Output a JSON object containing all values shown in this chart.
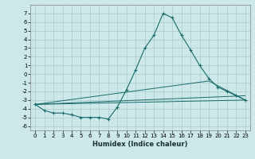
{
  "xlabel": "Humidex (Indice chaleur)",
  "xlim": [
    -0.5,
    23.5
  ],
  "ylim": [
    -6.5,
    8.0
  ],
  "yticks": [
    -6,
    -5,
    -4,
    -3,
    -2,
    -1,
    0,
    1,
    2,
    3,
    4,
    5,
    6,
    7
  ],
  "xticks": [
    0,
    1,
    2,
    3,
    4,
    5,
    6,
    7,
    8,
    9,
    10,
    11,
    12,
    13,
    14,
    15,
    16,
    17,
    18,
    19,
    20,
    21,
    22,
    23
  ],
  "bg_color": "#cce8e8",
  "grid_color": "#aacccc",
  "line_color": "#1a6b6b",
  "main_line": {
    "x": [
      0,
      1,
      2,
      3,
      4,
      5,
      6,
      7,
      8,
      9,
      10,
      11,
      12,
      13,
      14,
      15,
      16,
      17,
      18,
      19,
      20,
      21,
      22,
      23
    ],
    "y": [
      -3.5,
      -4.2,
      -4.5,
      -4.5,
      -4.7,
      -5.0,
      -5.0,
      -5.0,
      -5.2,
      -3.8,
      -1.8,
      0.5,
      3.0,
      4.5,
      7.0,
      6.5,
      4.5,
      2.8,
      1.0,
      -0.5,
      -1.5,
      -2.0,
      -2.5,
      -3.0
    ]
  },
  "extra_lines": [
    {
      "x": [
        0,
        23
      ],
      "y": [
        -3.5,
        -3.0
      ]
    },
    {
      "x": [
        0,
        23
      ],
      "y": [
        -3.5,
        -2.5
      ]
    },
    {
      "x": [
        0,
        19,
        23
      ],
      "y": [
        -3.5,
        -0.8,
        -3.0
      ]
    }
  ],
  "tick_labelsize": 5,
  "xlabel_fontsize": 6
}
